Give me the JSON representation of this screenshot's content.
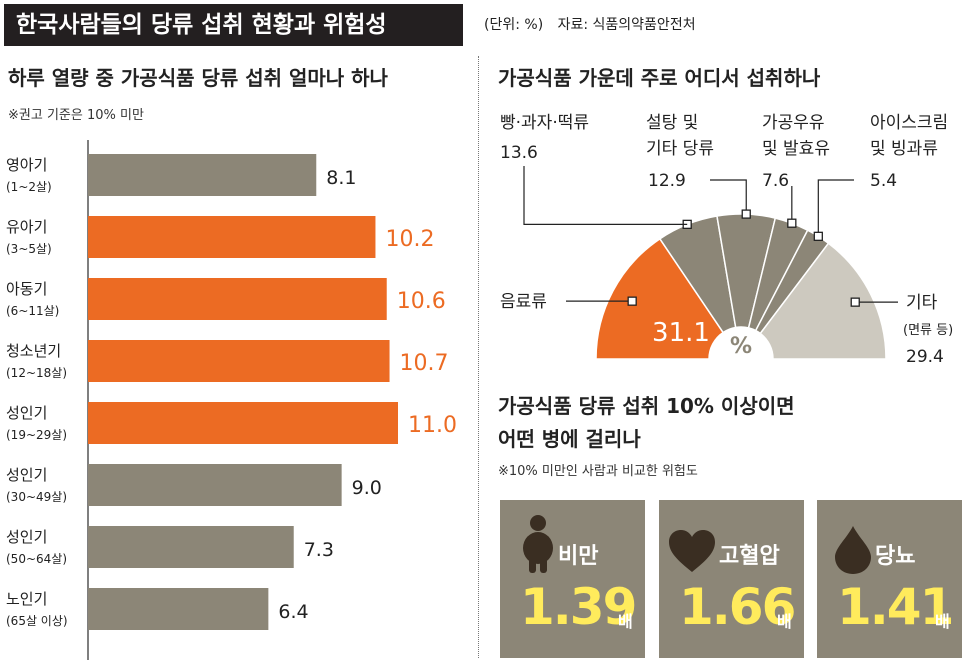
{
  "header": {
    "title": "한국사람들의 당류 섭취 현황과 위험성",
    "unit": "(단위: %)",
    "source": "자료: 식품의약품안전처"
  },
  "left_panel": {
    "heading": "하루 열량 중 가공식품 당류 섭취 얼마나 하나",
    "note": "※권고 기준은 10% 미만"
  },
  "right_top": {
    "heading": "가공식품 가운데 주로 어디서 섭취하나"
  },
  "right_bottom": {
    "heading_line1": "가공식품 당류 섭취 10% 이상이면",
    "heading_line2": "어떤 병에 걸리나",
    "note": "※10% 미만인 사람과 비교한 위험도",
    "cards": [
      {
        "label": "비만",
        "value": "1.39",
        "unit": "배",
        "icon": "person-icon"
      },
      {
        "label": "고혈압",
        "value": "1.66",
        "unit": "배",
        "icon": "heart-icon"
      },
      {
        "label": "당뇨",
        "value": "1.41",
        "unit": "배",
        "icon": "drop-icon"
      }
    ]
  },
  "chart_data": [
    {
      "type": "bar",
      "orientation": "horizontal",
      "title": "하루 열량 중 가공식품 당류 섭취 얼마나 하나",
      "categories": [
        {
          "name": "영아기",
          "sub": "(1~2살)"
        },
        {
          "name": "유아기",
          "sub": "(3~5살)"
        },
        {
          "name": "아동기",
          "sub": "(6~11살)"
        },
        {
          "name": "청소년기",
          "sub": "(12~18살)"
        },
        {
          "name": "성인기",
          "sub": "(19~29살)"
        },
        {
          "name": "성인기",
          "sub": "(30~49살)"
        },
        {
          "name": "성인기",
          "sub": "(50~64살)"
        },
        {
          "name": "노인기",
          "sub": "(65살 이상)"
        }
      ],
      "values": [
        8.1,
        10.2,
        10.6,
        10.7,
        11.0,
        9.0,
        7.3,
        6.4
      ],
      "value_labels": [
        "8.1",
        "10.2",
        "10.6",
        "10.7",
        "11.0",
        "9.0",
        "7.3",
        "6.4"
      ],
      "xlim": [
        0,
        13
      ],
      "highlight_threshold": 10,
      "colors": {
        "normal": "#8c8677",
        "highlight": "#ec6b23"
      }
    },
    {
      "type": "pie",
      "shape": "semicircle",
      "title": "가공식품 가운데 주로 어디서 섭취하나",
      "center_label": "%",
      "slices": [
        {
          "label": [
            "음료류"
          ],
          "value": 31.1,
          "value_label": "31.1",
          "color": "#ec6b23"
        },
        {
          "label": [
            "빵·과자·떡류"
          ],
          "value": 13.6,
          "value_label": "13.6",
          "color": "#8c8677"
        },
        {
          "label": [
            "설탕 및",
            "기타 당류"
          ],
          "value": 12.9,
          "value_label": "12.9",
          "color": "#8c8677"
        },
        {
          "label": [
            "가공우유",
            "및 발효유"
          ],
          "value": 7.6,
          "value_label": "7.6",
          "color": "#8c8677"
        },
        {
          "label": [
            "아이스크림",
            "및 빙과류"
          ],
          "value": 5.4,
          "value_label": "5.4",
          "color": "#8c8677"
        },
        {
          "label": [
            "기타",
            "(면류 등)"
          ],
          "value": 29.4,
          "value_label": "29.4",
          "color": "#cdc9bf"
        }
      ]
    }
  ]
}
